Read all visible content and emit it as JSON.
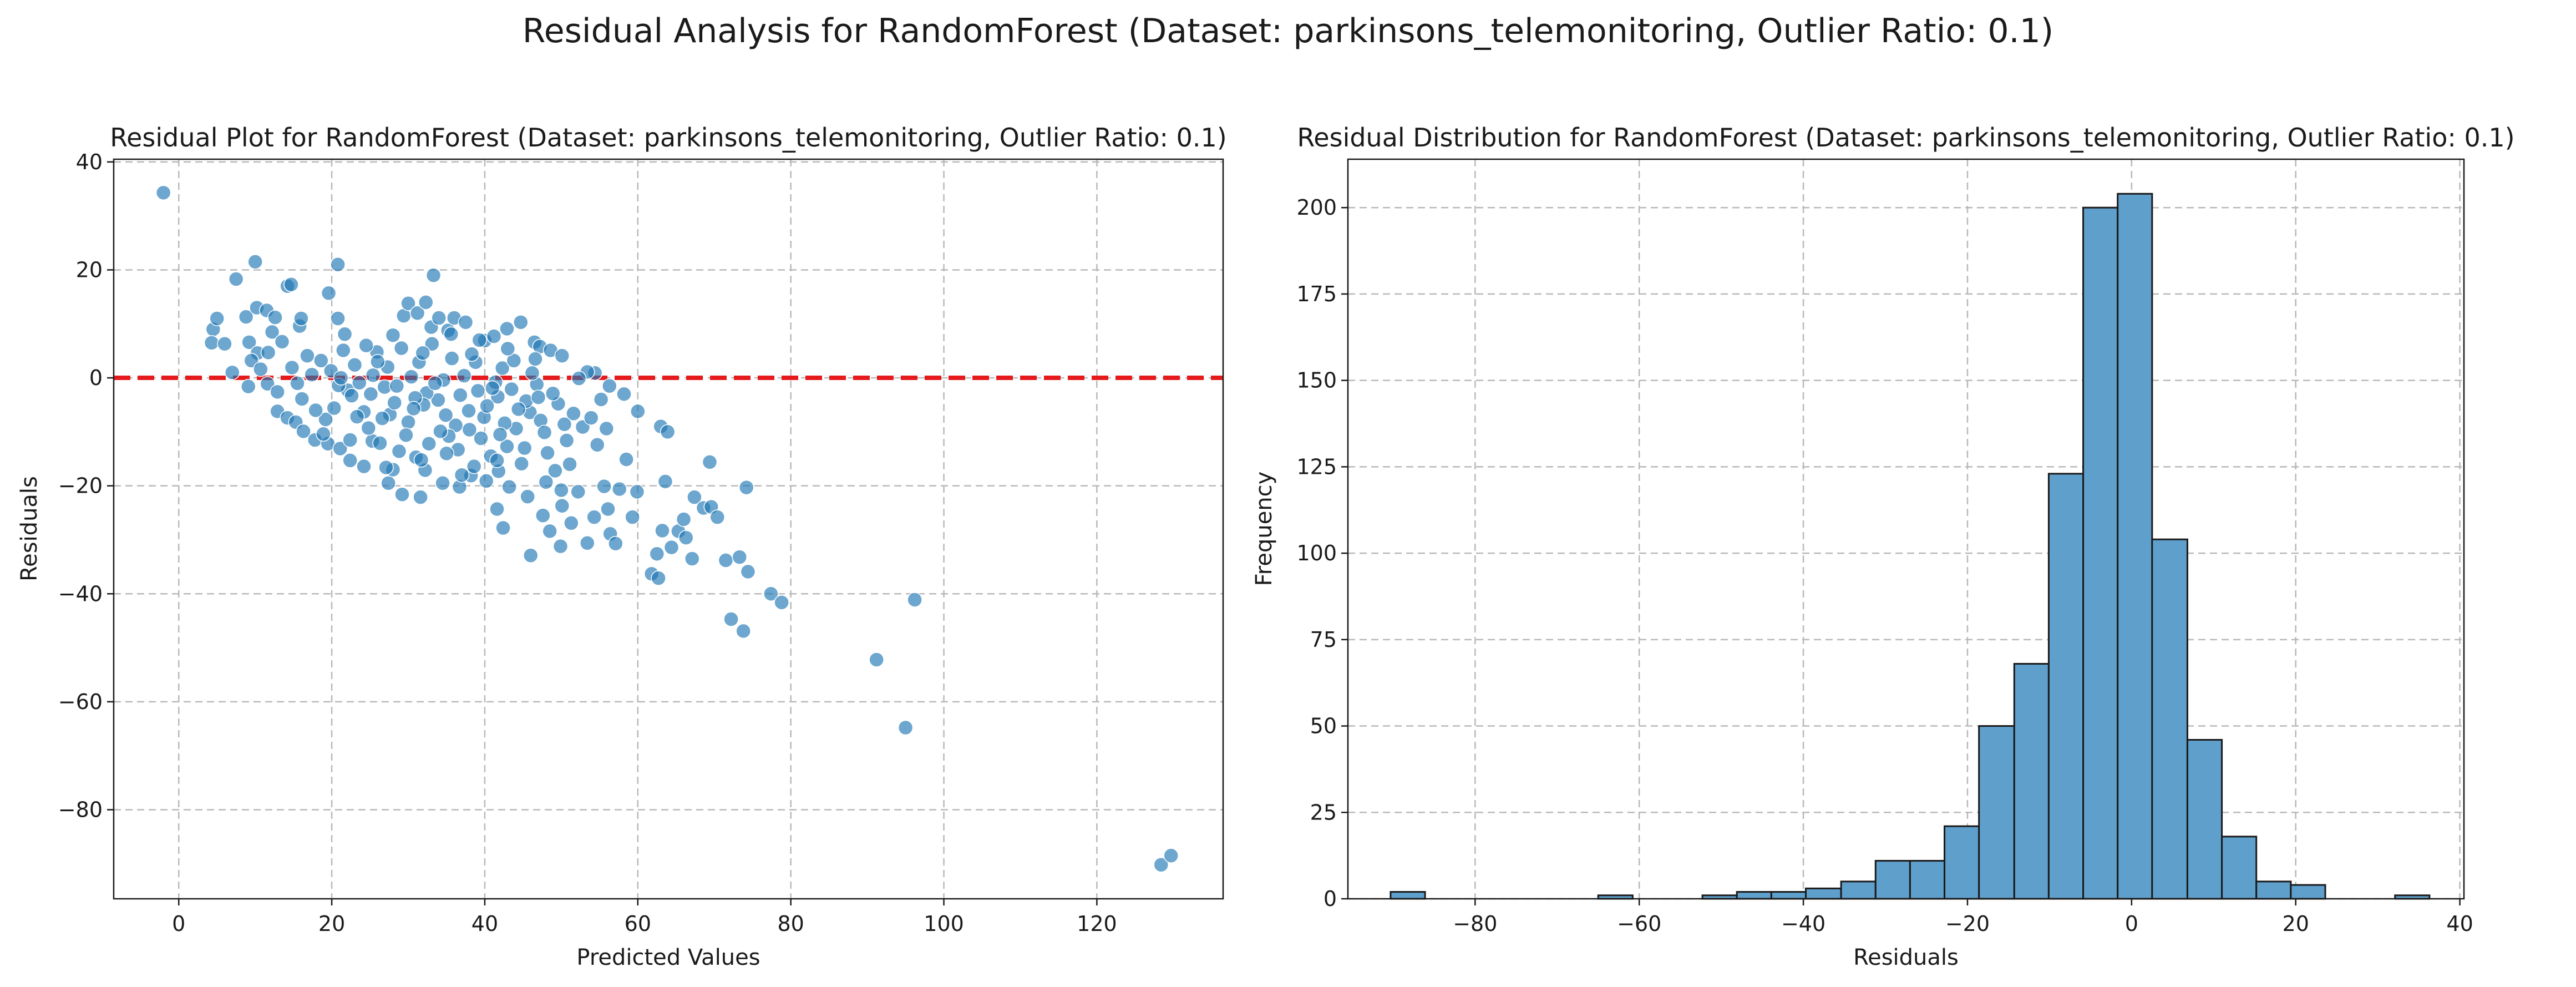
{
  "figure": {
    "suptitle": "Residual Analysis for RandomForest (Dataset: parkinsons_telemonitoring, Outlier Ratio: 0.1)"
  },
  "chart_data": [
    {
      "type": "scatter",
      "title": "Residual Plot for RandomForest (Dataset: parkinsons_telemonitoring, Outlier Ratio: 0.1)",
      "xlabel": "Predicted Values",
      "ylabel": "Residuals",
      "xlim": [
        -8.5,
        136.5
      ],
      "ylim": [
        -96.5,
        40.5
      ],
      "xticks": [
        0,
        20,
        40,
        60,
        80,
        100,
        120
      ],
      "yticks": [
        -80,
        -60,
        -40,
        -20,
        0,
        20,
        40
      ],
      "grid": true,
      "point_color": "#1f77b4",
      "reference_line": {
        "y": 0,
        "color": "#e41a1c",
        "style": "dashed"
      },
      "series": [
        {
          "values": [
            [
              -2,
              34.3
            ],
            [
              4.5,
              9.0
            ],
            [
              5.0,
              11.0
            ],
            [
              4.3,
              6.5
            ],
            [
              6.0,
              6.3
            ],
            [
              7.0,
              1.0
            ],
            [
              7.5,
              18.3
            ],
            [
              9.2,
              6.6
            ],
            [
              8.8,
              11.3
            ],
            [
              10.0,
              21.5
            ],
            [
              10.2,
              13.0
            ],
            [
              11.5,
              12.5
            ],
            [
              10.3,
              4.6
            ],
            [
              11.7,
              4.7
            ],
            [
              9.5,
              3.2
            ],
            [
              10.7,
              1.6
            ],
            [
              9.1,
              -1.6
            ],
            [
              11.6,
              -1.1
            ],
            [
              12.2,
              8.5
            ],
            [
              12.6,
              11.2
            ],
            [
              13.5,
              6.7
            ],
            [
              14.2,
              17.0
            ],
            [
              14.7,
              17.3
            ],
            [
              15.8,
              9.6
            ],
            [
              16.0,
              11.0
            ],
            [
              12.9,
              -6.2
            ],
            [
              14.2,
              -7.4
            ],
            [
              15.3,
              -8.2
            ],
            [
              16.3,
              -9.9
            ],
            [
              17.8,
              -11.5
            ],
            [
              19.6,
              15.7
            ],
            [
              20.8,
              21.0
            ],
            [
              20.8,
              11.0
            ],
            [
              21.7,
              8.1
            ],
            [
              19.5,
              -12.2
            ],
            [
              21.1,
              -13.1
            ],
            [
              22.4,
              -15.3
            ],
            [
              24.2,
              -16.4
            ],
            [
              25.3,
              -11.7
            ],
            [
              27.4,
              -19.5
            ],
            [
              28.0,
              -17.0
            ],
            [
              29.4,
              11.5
            ],
            [
              29.2,
              -21.6
            ],
            [
              30.0,
              13.8
            ],
            [
              31.2,
              12.0
            ],
            [
              32.3,
              14.0
            ],
            [
              33.0,
              9.4
            ],
            [
              33.3,
              19.0
            ],
            [
              34.0,
              11.1
            ],
            [
              35.2,
              8.8
            ],
            [
              36.0,
              11.1
            ],
            [
              37.5,
              10.3
            ],
            [
              31.0,
              -14.7
            ],
            [
              32.2,
              -17.1
            ],
            [
              31.6,
              -22.1
            ],
            [
              34.5,
              -19.5
            ],
            [
              36.7,
              -20.2
            ],
            [
              38.2,
              -18.1
            ],
            [
              40.2,
              -19.1
            ],
            [
              41.8,
              -17.3
            ],
            [
              43.2,
              -20.2
            ],
            [
              40.0,
              6.9
            ],
            [
              41.2,
              7.7
            ],
            [
              42.9,
              9.1
            ],
            [
              44.7,
              10.3
            ],
            [
              46.5,
              6.6
            ],
            [
              47.2,
              5.8
            ],
            [
              48.6,
              5.1
            ],
            [
              50.1,
              4.1
            ],
            [
              41.6,
              -24.3
            ],
            [
              42.4,
              -27.8
            ],
            [
              46.0,
              -32.9
            ],
            [
              47.6,
              -25.5
            ],
            [
              48.5,
              -28.4
            ],
            [
              49.9,
              -31.2
            ],
            [
              50.1,
              -23.7
            ],
            [
              51.3,
              -26.9
            ],
            [
              52.2,
              -21.1
            ],
            [
              53.4,
              -30.6
            ],
            [
              54.3,
              -25.8
            ],
            [
              55.6,
              -20.1
            ],
            [
              56.4,
              -28.9
            ],
            [
              57.1,
              -30.7
            ],
            [
              56.1,
              -24.3
            ],
            [
              57.6,
              -20.6
            ],
            [
              58.5,
              -15.1
            ],
            [
              59.3,
              -25.8
            ],
            [
              59.9,
              -21.1
            ],
            [
              61.8,
              -36.3
            ],
            [
              62.7,
              -37.1
            ],
            [
              62.5,
              -32.6
            ],
            [
              63.2,
              -28.3
            ],
            [
              63.6,
              -19.2
            ],
            [
              64.4,
              -31.4
            ],
            [
              65.3,
              -28.4
            ],
            [
              66.0,
              -26.2
            ],
            [
              66.3,
              -29.6
            ],
            [
              67.1,
              -33.5
            ],
            [
              67.4,
              -22.1
            ],
            [
              68.6,
              -24.1
            ],
            [
              69.4,
              -15.6
            ],
            [
              69.6,
              -23.9
            ],
            [
              70.4,
              -25.8
            ],
            [
              71.5,
              -33.8
            ],
            [
              72.2,
              -44.7
            ],
            [
              73.3,
              -33.2
            ],
            [
              73.8,
              -46.9
            ],
            [
              74.2,
              -20.3
            ],
            [
              74.4,
              -35.9
            ],
            [
              77.4,
              -40.0
            ],
            [
              78.8,
              -41.6
            ],
            [
              91.2,
              -52.2
            ],
            [
              95.0,
              -64.8
            ],
            [
              96.2,
              -41.1
            ],
            [
              128.4,
              -90.2
            ],
            [
              129.7,
              -88.5
            ],
            [
              63.0,
              -9.0
            ],
            [
              63.9,
              -10.0
            ],
            [
              60.0,
              -6.2
            ],
            [
              58.2,
              -3.0
            ],
            [
              56.3,
              -1.5
            ],
            [
              54.4,
              0.9
            ],
            [
              53.4,
              1.1
            ],
            [
              52.3,
              -0.1
            ],
            [
              18.6,
              3.2
            ],
            [
              22.1,
              -2.3
            ],
            [
              25.9,
              4.8
            ],
            [
              27.6,
              -6.8
            ],
            [
              30.4,
              0.2
            ],
            [
              33.9,
              -4.1
            ],
            [
              36.2,
              -8.8
            ],
            [
              38.8,
              2.9
            ],
            [
              41.7,
              -3.5
            ],
            [
              44.1,
              -9.4
            ],
            [
              46.8,
              -1.2
            ],
            [
              19.2,
              -7.7
            ],
            [
              23.6,
              -0.9
            ],
            [
              26.3,
              -12.1
            ],
            [
              29.1,
              5.5
            ],
            [
              32.4,
              -2.8
            ],
            [
              35.7,
              3.6
            ],
            [
              39.5,
              -11.2
            ],
            [
              42.3,
              1.8
            ],
            [
              45.9,
              -6.4
            ],
            [
              48.2,
              -13.9
            ],
            [
              17.4,
              0.6
            ],
            [
              21.5,
              5.1
            ],
            [
              24.8,
              -9.3
            ],
            [
              28.2,
              -4.6
            ],
            [
              31.7,
              -15.2
            ],
            [
              34.6,
              -0.4
            ],
            [
              37.9,
              -6.1
            ],
            [
              40.8,
              -14.5
            ],
            [
              43.5,
              -2.1
            ],
            [
              47.3,
              -7.9
            ],
            [
              50.7,
              -11.6
            ],
            [
              16.1,
              -3.9
            ],
            [
              20.3,
              -5.6
            ],
            [
              23.0,
              2.4
            ],
            [
              26.9,
              -1.7
            ],
            [
              30.0,
              -8.2
            ],
            [
              33.1,
              6.3
            ],
            [
              36.8,
              -3.2
            ],
            [
              39.9,
              -7.3
            ],
            [
              42.9,
              -12.7
            ],
            [
              46.2,
              0.9
            ],
            [
              49.6,
              -4.8
            ],
            [
              52.8,
              -9.1
            ],
            [
              14.8,
              1.9
            ],
            [
              18.9,
              -10.4
            ],
            [
              22.6,
              -3.3
            ],
            [
              25.4,
              0.5
            ],
            [
              28.8,
              -13.6
            ],
            [
              32.0,
              -5.0
            ],
            [
              35.3,
              -10.8
            ],
            [
              38.3,
              4.4
            ],
            [
              41.4,
              -0.8
            ],
            [
              44.8,
              -15.9
            ],
            [
              48.9,
              -2.9
            ],
            [
              12.9,
              -2.6
            ],
            [
              16.8,
              4.1
            ],
            [
              20.9,
              -1.4
            ],
            [
              24.2,
              -6.3
            ],
            [
              27.3,
              2.0
            ],
            [
              30.9,
              -3.7
            ],
            [
              34.2,
              -9.9
            ],
            [
              37.3,
              0.4
            ],
            [
              40.3,
              -5.2
            ],
            [
              43.8,
              3.2
            ],
            [
              47.8,
              -10.1
            ],
            [
              51.6,
              -6.6
            ],
            [
              55.2,
              -4.0
            ],
            [
              19.9,
              1.3
            ],
            [
              23.3,
              -7.2
            ],
            [
              26.0,
              3.0
            ],
            [
              29.7,
              -10.6
            ],
            [
              33.5,
              -1.0
            ],
            [
              36.5,
              -13.3
            ],
            [
              39.1,
              -2.4
            ],
            [
              42.6,
              -8.4
            ],
            [
              45.4,
              -4.3
            ],
            [
              49.2,
              -17.2
            ],
            [
              53.9,
              -7.4
            ],
            [
              15.5,
              -1.0
            ],
            [
              21.2,
              0.0
            ],
            [
              25.1,
              -3.0
            ],
            [
              28.5,
              -1.5
            ],
            [
              31.4,
              2.9
            ],
            [
              34.9,
              -6.9
            ],
            [
              38.0,
              -9.6
            ],
            [
              41.0,
              -1.9
            ],
            [
              44.4,
              -5.8
            ],
            [
              47.0,
              -3.6
            ],
            [
              50.4,
              -8.6
            ],
            [
              54.7,
              -12.4
            ],
            [
              17.9,
              -6.0
            ],
            [
              22.4,
              -11.5
            ],
            [
              26.6,
              -7.5
            ],
            [
              30.7,
              -5.7
            ],
            [
              35.0,
              -14.0
            ],
            [
              38.6,
              -16.4
            ],
            [
              42.0,
              -10.5
            ],
            [
              45.2,
              -13.0
            ],
            [
              48.0,
              -19.3
            ],
            [
              51.1,
              -16.0
            ],
            [
              55.9,
              -9.4
            ],
            [
              24.5,
              6.0
            ],
            [
              28.0,
              7.9
            ],
            [
              31.9,
              4.6
            ],
            [
              35.6,
              8.1
            ],
            [
              39.3,
              7.0
            ],
            [
              43.0,
              5.4
            ],
            [
              46.6,
              3.5
            ],
            [
              27.1,
              -16.6
            ],
            [
              32.7,
              -12.2
            ],
            [
              37.0,
              -18.0
            ],
            [
              41.6,
              -15.3
            ],
            [
              45.6,
              -22.0
            ],
            [
              50.0,
              -20.8
            ]
          ]
        }
      ]
    },
    {
      "type": "bar",
      "title": "Residual Distribution for RandomForest (Dataset: parkinsons_telemonitoring, Outlier Ratio: 0.1)",
      "xlabel": "Residuals",
      "ylabel": "Frequency",
      "xlim": [
        -95.5,
        40.5
      ],
      "ylim": [
        0,
        214
      ],
      "xticks": [
        -80,
        -60,
        -40,
        -20,
        0,
        20,
        40
      ],
      "yticks": [
        0,
        25,
        50,
        75,
        100,
        125,
        150,
        175,
        200
      ],
      "grid": true,
      "bar_color": "#5f9fcc",
      "bar_edge_color": "#1a1a1a",
      "bin_edges": [
        -90.3,
        -86.1,
        -81.9,
        -77.6,
        -73.4,
        -69.2,
        -65.0,
        -60.8,
        -56.5,
        -52.3,
        -48.1,
        -43.9,
        -39.7,
        -35.4,
        -31.2,
        -27.0,
        -22.8,
        -18.6,
        -14.3,
        -10.1,
        -5.9,
        -1.7,
        2.5,
        6.8,
        11.0,
        15.2,
        19.4,
        23.6,
        27.9,
        32.1,
        36.3
      ],
      "values": [
        2,
        0,
        0,
        0,
        0,
        0,
        1,
        0,
        0,
        1,
        2,
        2,
        3,
        5,
        11,
        11,
        21,
        50,
        68,
        123,
        200,
        204,
        104,
        46,
        18,
        5,
        4,
        0,
        0,
        1
      ]
    }
  ]
}
